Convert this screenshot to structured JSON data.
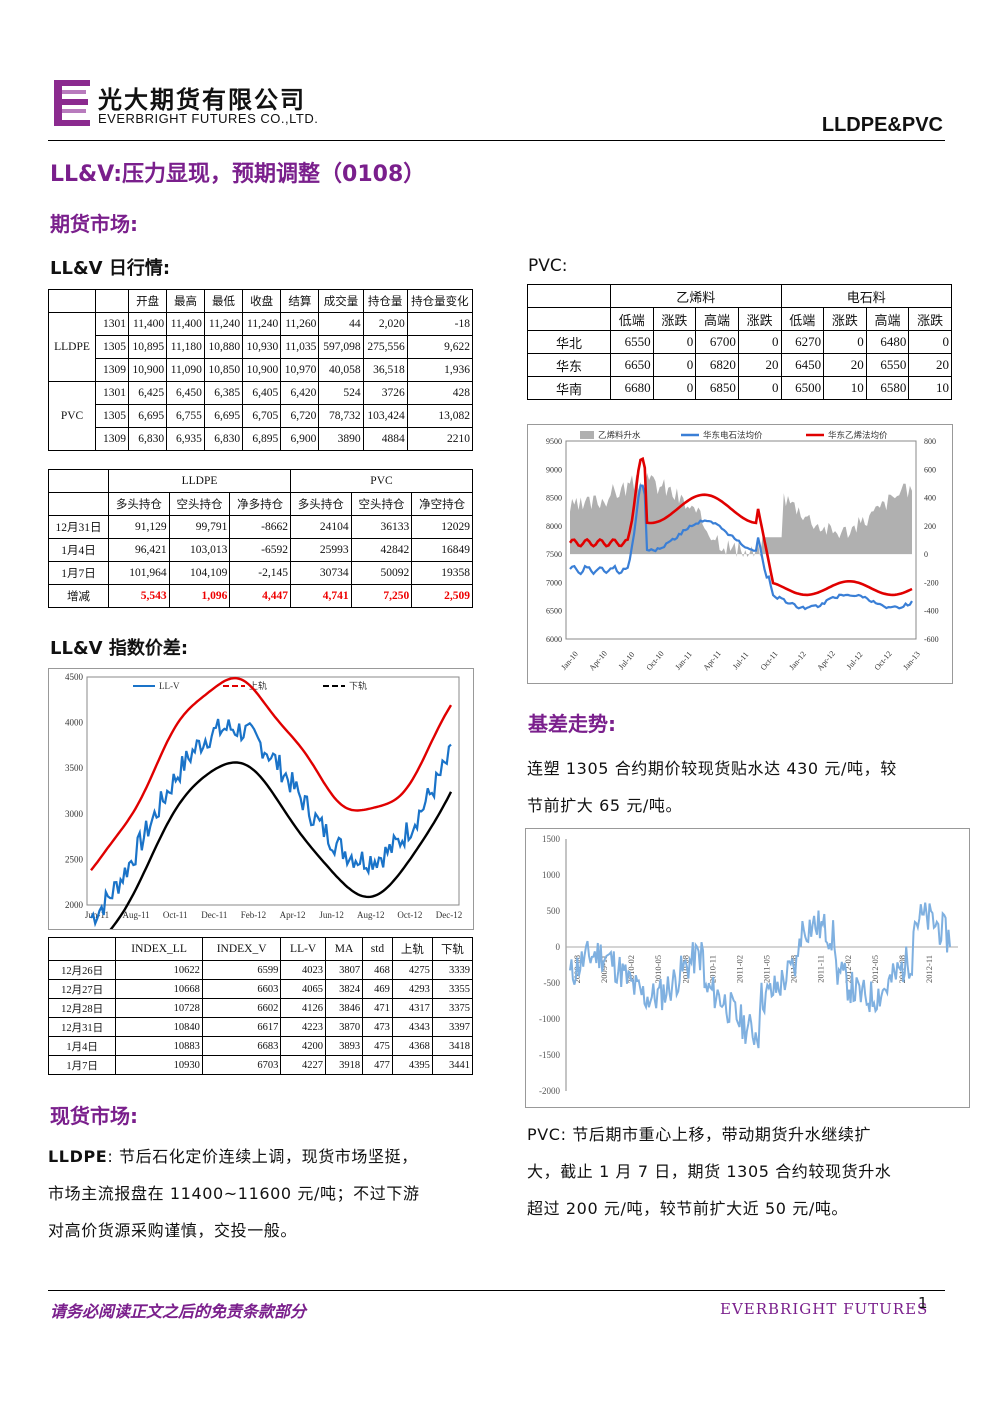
{
  "header": {
    "company_cn": "光大期货有限公司",
    "company_en": "EVERBRIGHT FUTURES CO.,LTD.",
    "report_tag": "LLDPE&PVC"
  },
  "report_title": "LL&V:压力显现，预期调整（0108）",
  "futures_section": "期货市场:",
  "daily_title": "LL&V 日行情:",
  "pvc_label": "PVC:",
  "daily_table": {
    "headers": [
      "开盘",
      "最高",
      "最低",
      "收盘",
      "结算",
      "成交量",
      "持仓量",
      "持仓量变化"
    ],
    "groups": [
      {
        "name": "LLDPE",
        "rows": [
          [
            "1301",
            "11,400",
            "11,400",
            "11,240",
            "11,240",
            "11,260",
            "44",
            "2,020",
            "-18"
          ],
          [
            "1305",
            "10,895",
            "11,180",
            "10,880",
            "10,930",
            "11,035",
            "597,098",
            "275,556",
            "9,622"
          ],
          [
            "1309",
            "10,900",
            "11,090",
            "10,850",
            "10,900",
            "10,970",
            "40,058",
            "36,518",
            "1,936"
          ]
        ]
      },
      {
        "name": "PVC",
        "rows": [
          [
            "1301",
            "6,425",
            "6,450",
            "6,385",
            "6,405",
            "6,420",
            "524",
            "3726",
            "428"
          ],
          [
            "1305",
            "6,695",
            "6,755",
            "6,695",
            "6,705",
            "6,720",
            "78,732",
            "103,424",
            "13,082"
          ],
          [
            "1309",
            "6,830",
            "6,935",
            "6,830",
            "6,895",
            "6,900",
            "3890",
            "4884",
            "2210"
          ]
        ]
      }
    ]
  },
  "position_table": {
    "group1": "LLDPE",
    "group2": "PVC",
    "headers": [
      "多头持仓",
      "空头持仓",
      "净多持仓",
      "多头持仓",
      "空头持仓",
      "净空持仓"
    ],
    "rows": [
      [
        "12月31日",
        "91,129",
        "99,791",
        "-8662",
        "24104",
        "36133",
        "12029"
      ],
      [
        "1月4日",
        "96,421",
        "103,013",
        "-6592",
        "25993",
        "42842",
        "16849"
      ],
      [
        "1月7日",
        "101,964",
        "104,109",
        "-2,145",
        "30734",
        "50092",
        "19358"
      ]
    ],
    "change_row": [
      "增减",
      "5,543",
      "1,096",
      "4,447",
      "4,741",
      "7,250",
      "2,509"
    ]
  },
  "index_spread_title": "LL&V 指数价差:",
  "spread_chart": {
    "legend": [
      "LL-V",
      "上轨",
      "下轨"
    ],
    "y_ticks": [
      "4500",
      "4000",
      "3500",
      "3000",
      "2500",
      "2000"
    ],
    "x_ticks": [
      "Jun-11",
      "Aug-11",
      "Oct-11",
      "Dec-11",
      "Feb-12",
      "Apr-12",
      "Jun-12",
      "Aug-12",
      "Oct-12",
      "Dec-12"
    ],
    "colors": {
      "llv": "#1a73c8",
      "upper": "#e00000",
      "lower": "#000000"
    }
  },
  "index_table": {
    "headers": [
      "",
      "INDEX_LL",
      "INDEX_V",
      "LL-V",
      "MA",
      "std",
      "上轨",
      "下轨"
    ],
    "rows": [
      [
        "12月26日",
        "10622",
        "6599",
        "4023",
        "3807",
        "468",
        "4275",
        "3339"
      ],
      [
        "12月27日",
        "10668",
        "6603",
        "4065",
        "3824",
        "469",
        "4293",
        "3355"
      ],
      [
        "12月28日",
        "10728",
        "6602",
        "4126",
        "3846",
        "471",
        "4317",
        "3375"
      ],
      [
        "12月31日",
        "10840",
        "6617",
        "4223",
        "3870",
        "473",
        "4343",
        "3397"
      ],
      [
        "1月4日",
        "10883",
        "6683",
        "4200",
        "3893",
        "475",
        "4368",
        "3418"
      ],
      [
        "1月7日",
        "10930",
        "6703",
        "4227",
        "3918",
        "477",
        "4395",
        "3441"
      ]
    ]
  },
  "spot_section": "现货市场:",
  "lldpe_para_label": "LLDPE",
  "lldpe_para_lines": [
    ": 节后石化定价连续上调，现货市场坚挺，",
    "市场主流报盘在 11400~11600 元/吨；不过下游",
    "对高价货源采购谨慎，交投一般。"
  ],
  "pvc_table": {
    "group1": "乙烯料",
    "group2": "电石料",
    "headers": [
      "低端",
      "涨跌",
      "高端",
      "涨跌",
      "低端",
      "涨跌",
      "高端",
      "涨跌"
    ],
    "rows": [
      [
        "华北",
        "6550",
        "0",
        "6700",
        "0",
        "6270",
        "0",
        "6480",
        "0"
      ],
      [
        "华东",
        "6650",
        "0",
        "6820",
        "20",
        "6450",
        "20",
        "6550",
        "20"
      ],
      [
        "华南",
        "6680",
        "0",
        "6850",
        "0",
        "6500",
        "10",
        "6580",
        "10"
      ]
    ]
  },
  "pvc_chart": {
    "legend": [
      "乙烯料升水",
      "华东电石法均价",
      "华东乙烯法均价"
    ],
    "y_left": [
      "9500",
      "9000",
      "8500",
      "8000",
      "7500",
      "7000",
      "6500",
      "6000"
    ],
    "y_right": [
      "800",
      "600",
      "400",
      "200",
      "0",
      "-200",
      "-400",
      "-600"
    ],
    "x_ticks": [
      "Jan-10",
      "Apr-10",
      "Jul-10",
      "Oct-10",
      "Jan-11",
      "Apr-11",
      "Jul-11",
      "Oct-11",
      "Jan-12",
      "Apr-12",
      "Jul-12",
      "Oct-12",
      "Jan-13"
    ],
    "colors": {
      "premium": "#b0b0b0",
      "carbide": "#3a7fd6",
      "ethylene": "#e00000"
    }
  },
  "basis_section": "基差走势:",
  "basis_para_lines": [
    "连塑 1305 合约期价较现货贴水达 430 元/吨，较",
    "节前扩大 65 元/吨。"
  ],
  "basis_chart": {
    "y_ticks": [
      "1500",
      "1000",
      "500",
      "0",
      "-500",
      "-1000",
      "-1500",
      "-2000"
    ],
    "x_ticks": [
      "2009-08",
      "2009-11",
      "2010-02",
      "2010-05",
      "2010-08",
      "2010-11",
      "2011-02",
      "2011-05",
      "2011-08",
      "2011-11",
      "2012-02",
      "2012-05",
      "2012-08",
      "2012-11"
    ],
    "color": "#7fb0e0"
  },
  "pvc_para_lines": [
    "PVC: 节后期市重心上移，带动期货升水继续扩",
    "大，截止 1 月 7 日，期货 1305 合约较现货升水",
    "超过 200 元/吨，较节前扩大近 50 元/吨。"
  ],
  "footer": {
    "disclaimer": "请务必阅读正文之后的免责条款部分",
    "brand": "EVERBRIGHT FUTURES",
    "page": "1"
  }
}
